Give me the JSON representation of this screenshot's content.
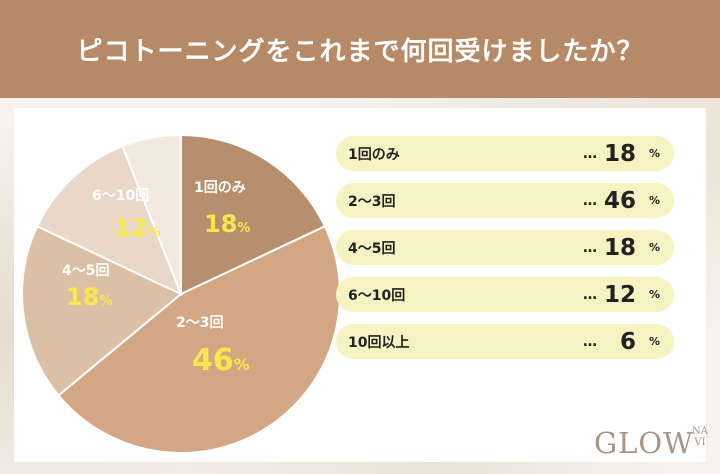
{
  "title": "ピコトーニングをこれまで何回受けましたか？",
  "colors": {
    "header": "#b78a67",
    "highlight": "#f8e84c",
    "legend_bg": "#f7f2c2",
    "slices": [
      "#b88f6e",
      "#d4a784",
      "#dcc0a6",
      "#e9d8c8",
      "#f3e9de"
    ]
  },
  "chart_data": {
    "type": "pie",
    "unit": "%",
    "categories": [
      "1回のみ",
      "2〜3回",
      "4〜5回",
      "6〜10回",
      "10回以上"
    ],
    "values": [
      18,
      46,
      18,
      12,
      6
    ]
  },
  "legend": {
    "dots": "…",
    "unit": "%"
  },
  "logo": {
    "main": "GLOW",
    "sub_top": "NA",
    "sub_bottom": "VI"
  }
}
